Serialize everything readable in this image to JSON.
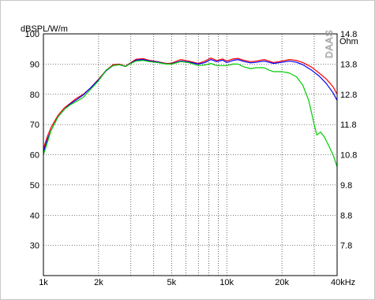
{
  "chart_data": {
    "type": "line",
    "ylabel": "dBSPL/W/m",
    "y2label": "Ohm",
    "brand": "DAAS",
    "x_scale": "log",
    "xlim": [
      1000,
      40000
    ],
    "ylim": [
      20,
      100
    ],
    "y2lim": [
      6.8,
      14.8
    ],
    "x_ticks": [
      {
        "value": 1000,
        "label": "1k"
      },
      {
        "value": 2000,
        "label": "2k"
      },
      {
        "value": 5000,
        "label": "5k"
      },
      {
        "value": 10000,
        "label": "10k"
      },
      {
        "value": 20000,
        "label": "20k"
      },
      {
        "value": 40000,
        "label": "40kHz"
      }
    ],
    "x_minor_gridlines": [
      3000,
      4000,
      6000,
      7000,
      8000,
      9000,
      30000
    ],
    "y_ticks": [
      {
        "value": 100,
        "label": "100"
      },
      {
        "value": 90,
        "label": "90"
      },
      {
        "value": 80,
        "label": "80"
      },
      {
        "value": 70,
        "label": "70"
      },
      {
        "value": 60,
        "label": "60"
      },
      {
        "value": 50,
        "label": "50"
      },
      {
        "value": 40,
        "label": "40"
      },
      {
        "value": 30,
        "label": "30"
      }
    ],
    "y2_ticks": [
      {
        "value": 14.8,
        "label": "14.8"
      },
      {
        "value": 13.8,
        "label": "13.8"
      },
      {
        "value": 12.8,
        "label": "12.8"
      },
      {
        "value": 11.8,
        "label": "11.8"
      },
      {
        "value": 10.8,
        "label": "10.8"
      },
      {
        "value": 9.8,
        "label": "9.8"
      },
      {
        "value": 8.8,
        "label": "8.8"
      },
      {
        "value": 7.8,
        "label": "7.8"
      }
    ],
    "grid": true,
    "series": [
      {
        "color": "#ff0000",
        "points": [
          [
            1000,
            62
          ],
          [
            1050,
            66
          ],
          [
            1100,
            69
          ],
          [
            1200,
            73
          ],
          [
            1300,
            75.5
          ],
          [
            1400,
            77
          ],
          [
            1500,
            78.5
          ],
          [
            1650,
            80
          ],
          [
            1800,
            82
          ],
          [
            2000,
            85
          ],
          [
            2200,
            88
          ],
          [
            2400,
            89.8
          ],
          [
            2600,
            90
          ],
          [
            2800,
            89.3
          ],
          [
            3000,
            90.5
          ],
          [
            3200,
            91.6
          ],
          [
            3500,
            91.8
          ],
          [
            3800,
            91.2
          ],
          [
            4200,
            90.8
          ],
          [
            4700,
            90.2
          ],
          [
            5000,
            90.3
          ],
          [
            5600,
            91.5
          ],
          [
            6200,
            91
          ],
          [
            7000,
            90.2
          ],
          [
            7600,
            91
          ],
          [
            8200,
            92
          ],
          [
            8800,
            91.2
          ],
          [
            9500,
            91.7
          ],
          [
            10000,
            91
          ],
          [
            10800,
            91.7
          ],
          [
            11500,
            91.9
          ],
          [
            12500,
            91.2
          ],
          [
            13500,
            90.8
          ],
          [
            14500,
            91
          ],
          [
            16000,
            91.5
          ],
          [
            17000,
            91
          ],
          [
            18000,
            90.5
          ],
          [
            20000,
            91
          ],
          [
            22000,
            91.5
          ],
          [
            24000,
            91.2
          ],
          [
            26000,
            90.5
          ],
          [
            29000,
            89
          ],
          [
            32000,
            87
          ],
          [
            35000,
            85
          ],
          [
            38000,
            82.5
          ],
          [
            40000,
            80
          ]
        ]
      },
      {
        "color": "#0000ff",
        "points": [
          [
            1000,
            61
          ],
          [
            1050,
            65
          ],
          [
            1100,
            68
          ],
          [
            1200,
            72.5
          ],
          [
            1300,
            75
          ],
          [
            1400,
            76.8
          ],
          [
            1500,
            78
          ],
          [
            1650,
            79.8
          ],
          [
            1800,
            82
          ],
          [
            2000,
            84.8
          ],
          [
            2200,
            87.8
          ],
          [
            2400,
            89.5
          ],
          [
            2600,
            89.8
          ],
          [
            2800,
            89.2
          ],
          [
            3000,
            90.3
          ],
          [
            3200,
            91.3
          ],
          [
            3500,
            91.5
          ],
          [
            3800,
            91
          ],
          [
            4200,
            90.7
          ],
          [
            4700,
            90
          ],
          [
            5000,
            90.1
          ],
          [
            5600,
            91
          ],
          [
            6200,
            90.7
          ],
          [
            7000,
            90
          ],
          [
            7600,
            90.5
          ],
          [
            8200,
            91.5
          ],
          [
            8800,
            90.8
          ],
          [
            9500,
            91.3
          ],
          [
            10000,
            90.5
          ],
          [
            10800,
            91.2
          ],
          [
            11500,
            91.5
          ],
          [
            12500,
            90.8
          ],
          [
            13500,
            90.4
          ],
          [
            14500,
            90.6
          ],
          [
            16000,
            91
          ],
          [
            17000,
            90.6
          ],
          [
            18000,
            90.2
          ],
          [
            20000,
            90.6
          ],
          [
            22000,
            91
          ],
          [
            24000,
            90.6
          ],
          [
            26000,
            89.8
          ],
          [
            29000,
            88
          ],
          [
            32000,
            86
          ],
          [
            35000,
            83.5
          ],
          [
            38000,
            80.5
          ],
          [
            40000,
            78
          ]
        ]
      },
      {
        "color": "#00cc00",
        "points": [
          [
            1000,
            60
          ],
          [
            1050,
            64
          ],
          [
            1100,
            68
          ],
          [
            1200,
            72.5
          ],
          [
            1300,
            75
          ],
          [
            1400,
            76.5
          ],
          [
            1500,
            77.5
          ],
          [
            1650,
            79
          ],
          [
            1800,
            81.5
          ],
          [
            2000,
            84.5
          ],
          [
            2200,
            88
          ],
          [
            2400,
            89.5
          ],
          [
            2600,
            89.8
          ],
          [
            2800,
            89.2
          ],
          [
            3000,
            90.2
          ],
          [
            3200,
            91
          ],
          [
            3500,
            91.2
          ],
          [
            3800,
            90.8
          ],
          [
            4200,
            90.5
          ],
          [
            4700,
            90
          ],
          [
            5000,
            90
          ],
          [
            5600,
            90.8
          ],
          [
            6200,
            90.5
          ],
          [
            7000,
            89.5
          ],
          [
            7600,
            89.7
          ],
          [
            8200,
            90.2
          ],
          [
            8800,
            89.5
          ],
          [
            9500,
            89.5
          ],
          [
            10000,
            89.5
          ],
          [
            10800,
            90
          ],
          [
            11500,
            90
          ],
          [
            12500,
            89
          ],
          [
            13500,
            88.5
          ],
          [
            14500,
            88.8
          ],
          [
            16000,
            88.8
          ],
          [
            17000,
            88
          ],
          [
            18000,
            87.5
          ],
          [
            20000,
            87.5
          ],
          [
            22000,
            87
          ],
          [
            24000,
            85.8
          ],
          [
            26000,
            83
          ],
          [
            28000,
            78
          ],
          [
            30000,
            70
          ],
          [
            31000,
            66.5
          ],
          [
            32500,
            67.5
          ],
          [
            34000,
            66
          ],
          [
            36000,
            63
          ],
          [
            38000,
            60
          ],
          [
            40000,
            56
          ]
        ]
      }
    ]
  }
}
